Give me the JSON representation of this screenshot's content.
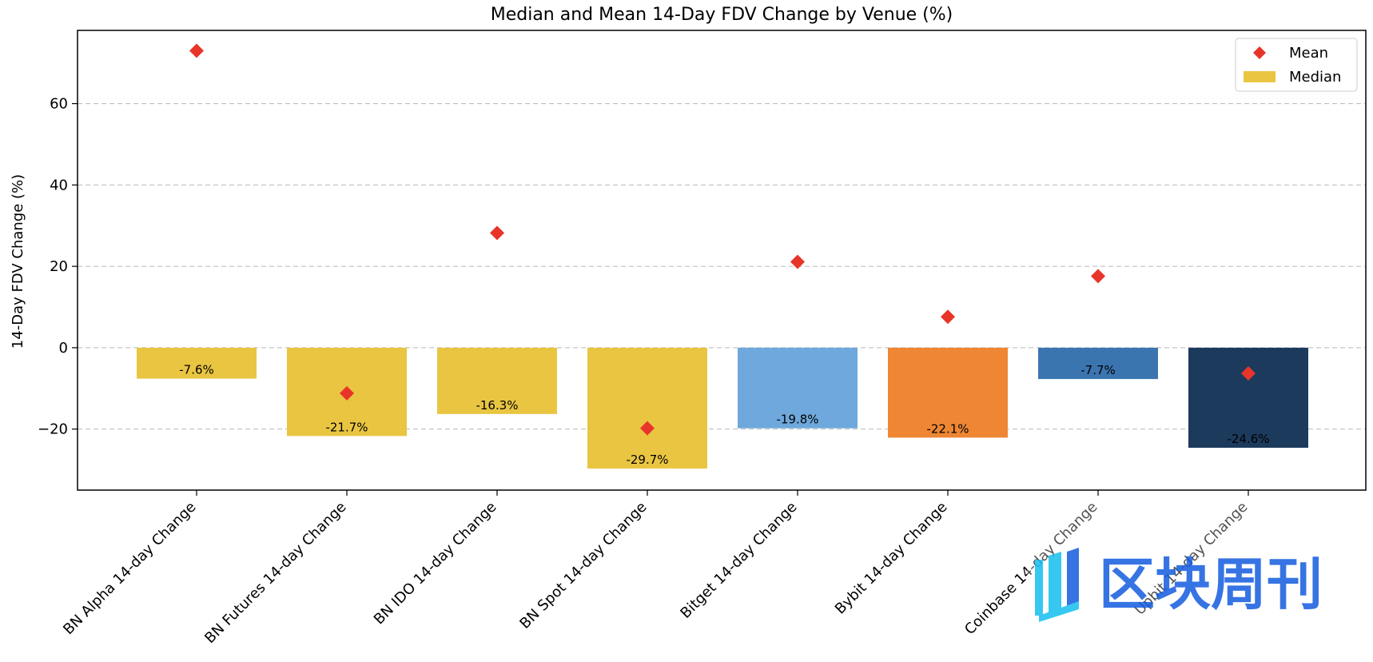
{
  "chart_data": {
    "type": "bar",
    "title": "Median and Mean 14-Day FDV Change by Venue (%)",
    "xlabel": "",
    "ylabel": "14-Day FDV Change (%)",
    "ylim": [
      -35,
      78
    ],
    "yticks": [
      -20,
      0,
      20,
      40,
      60
    ],
    "grid": "horizontal dashed",
    "legend_position": "top-right",
    "categories": [
      "BN Alpha 14-day Change",
      "BN Futures 14-day Change",
      "BN IDO 14-day Change",
      "BN Spot 14-day Change",
      "Bitget 14-day Change",
      "Bybit 14-day Change",
      "Coinbase 14-day Change",
      "Upbit 14-day Change"
    ],
    "series": [
      {
        "name": "Median",
        "kind": "bar",
        "values": [
          -7.6,
          -21.7,
          -16.3,
          -29.7,
          -19.8,
          -22.1,
          -7.7,
          -24.6
        ],
        "labels": [
          "-7.6%",
          "-21.7%",
          "-16.3%",
          "-29.7%",
          "-19.8%",
          "-22.1%",
          "-7.7%",
          "-24.6%"
        ],
        "colors": [
          "#E9C542",
          "#E9C542",
          "#E9C542",
          "#E9C542",
          "#6EA8DC",
          "#EE8634",
          "#3B75B0",
          "#1C3A5C"
        ]
      },
      {
        "name": "Mean",
        "kind": "scatter",
        "marker": "diamond",
        "color": "#E8352A",
        "values": [
          73.0,
          -11.2,
          28.2,
          -19.8,
          21.1,
          7.6,
          17.6,
          -6.3
        ]
      }
    ]
  },
  "watermark": {
    "text": "区块周刊",
    "colors": [
      "#22C3F0",
      "#2266E0"
    ]
  }
}
